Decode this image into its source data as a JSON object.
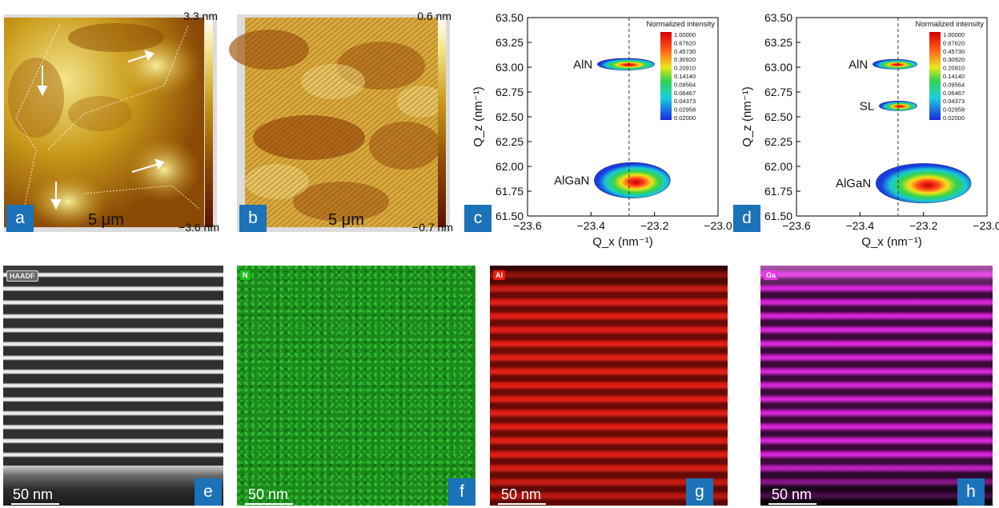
{
  "panels": {
    "a": {
      "letter": "a",
      "scale_label": "5 μm",
      "cbar_max": "3.3 nm",
      "cbar_min": "−3.6 nm"
    },
    "b": {
      "letter": "b",
      "scale_label": "5 μm",
      "cbar_max": "0.6 nm",
      "cbar_min": "−0.7 nm"
    },
    "e": {
      "letter": "e",
      "tag": "HAADF",
      "scale_label": "50 nm"
    },
    "f": {
      "letter": "f",
      "tag": "N",
      "scale_label": "50 nm"
    },
    "g": {
      "letter": "g",
      "tag": "Al",
      "scale_label": "50 nm"
    },
    "h": {
      "letter": "h",
      "tag": "Ga",
      "scale_label": "50 nm"
    }
  },
  "colors": {
    "panel_badge": "#1b72b8",
    "afm_high": "#f4e58a",
    "afm_low": "#5a1400",
    "n_map": "#22b022",
    "al_map": "#d81a10",
    "ga_map": "#d51ad5"
  },
  "chart_data": [
    {
      "type": "scatter",
      "panel": "c",
      "letter": "c",
      "xlabel": "Q_x (nm⁻¹)",
      "ylabel": "Q_z (nm⁻¹)",
      "xlim": [
        -23.6,
        -23.0
      ],
      "ylim": [
        61.5,
        63.5
      ],
      "xticks": [
        "−23.6",
        "−23.4",
        "−23.2",
        "−23.0"
      ],
      "yticks": [
        "61.50",
        "61.75",
        "62.00",
        "62.25",
        "62.50",
        "62.75",
        "63.00",
        "63.25",
        "63.50"
      ],
      "xtick_values": [
        -23.6,
        -23.4,
        -23.2,
        -23.0
      ],
      "ytick_values": [
        61.5,
        61.75,
        62.0,
        62.25,
        62.5,
        62.75,
        63.0,
        63.25,
        63.5
      ],
      "reference_line_x": -23.28,
      "legend_title": "Normalized intensity",
      "legend_values": [
        "1.00000",
        "0.67620",
        "0.45730",
        "0.30920",
        "0.20910",
        "0.14140",
        "0.09564",
        "0.06467",
        "0.04373",
        "0.02958",
        "0.02000"
      ],
      "peaks": [
        {
          "label": "AlN",
          "qx": -23.29,
          "qz": 63.03,
          "wx": 0.09,
          "wz": 0.06
        },
        {
          "label": "AlGaN",
          "qx": -23.27,
          "qz": 61.86,
          "wx": 0.12,
          "wz": 0.18
        }
      ]
    },
    {
      "type": "scatter",
      "panel": "d",
      "letter": "d",
      "xlabel": "Q_x (nm⁻¹)",
      "ylabel": "Q_z (nm⁻¹)",
      "xlim": [
        -23.6,
        -23.0
      ],
      "ylim": [
        61.5,
        63.5
      ],
      "xticks": [
        "−23.6",
        "−23.4",
        "−23.2",
        "−23.0"
      ],
      "yticks": [
        "61.50",
        "61.75",
        "62.00",
        "62.25",
        "62.50",
        "62.75",
        "63.00",
        "63.25",
        "63.50"
      ],
      "xtick_values": [
        -23.6,
        -23.4,
        -23.2,
        -23.0
      ],
      "ytick_values": [
        61.5,
        61.75,
        62.0,
        62.25,
        62.5,
        62.75,
        63.0,
        63.25,
        63.5
      ],
      "reference_line_x": -23.28,
      "legend_title": "Normalized intensity",
      "legend_values": [
        "1.00000",
        "0.67620",
        "0.45730",
        "0.30920",
        "0.20910",
        "0.14140",
        "0.09564",
        "0.06467",
        "0.04373",
        "0.02958",
        "0.02000"
      ],
      "peaks": [
        {
          "label": "AlN",
          "qx": -23.29,
          "qz": 63.03,
          "wx": 0.07,
          "wz": 0.05
        },
        {
          "label": "SL",
          "qx": -23.28,
          "qz": 62.61,
          "wx": 0.06,
          "wz": 0.05
        },
        {
          "label": "AlGaN",
          "qx": -23.2,
          "qz": 61.83,
          "wx": 0.15,
          "wz": 0.2
        }
      ]
    }
  ]
}
